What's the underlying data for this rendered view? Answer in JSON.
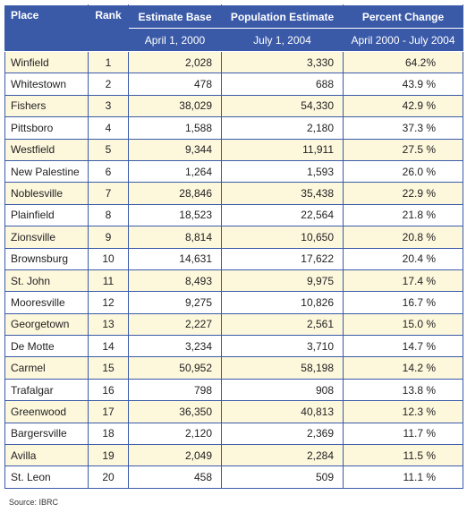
{
  "table": {
    "header": [
      "Place",
      "Rank",
      "Estimate Base",
      "Population Estimate",
      "Percent Change"
    ],
    "subheader": [
      "April 1, 2000",
      "July 1, 2004",
      "April 2000 - July 2004"
    ],
    "rows": [
      [
        "Winfield",
        "1",
        "2,028",
        "3,330",
        "64.2%"
      ],
      [
        "Whitestown",
        "2",
        "478",
        "688",
        "43.9 %"
      ],
      [
        "Fishers",
        "3",
        "38,029",
        "54,330",
        "42.9 %"
      ],
      [
        "Pittsboro",
        "4",
        "1,588",
        "2,180",
        "37.3 %"
      ],
      [
        "Westfield",
        "5",
        "9,344",
        "11,911",
        "27.5 %"
      ],
      [
        "New Palestine",
        "6",
        "1,264",
        "1,593",
        "26.0 %"
      ],
      [
        "Noblesville",
        "7",
        "28,846",
        "35,438",
        "22.9 %"
      ],
      [
        "Plainfield",
        "8",
        "18,523",
        "22,564",
        "21.8 %"
      ],
      [
        "Zionsville",
        "9",
        "8,814",
        "10,650",
        "20.8 %"
      ],
      [
        "Brownsburg",
        "10",
        "14,631",
        "17,622",
        "20.4 %"
      ],
      [
        "St. John",
        "11",
        "8,493",
        "9,975",
        "17.4 %"
      ],
      [
        "Mooresville",
        "12",
        "9,275",
        "10,826",
        "16.7 %"
      ],
      [
        "Georgetown",
        "13",
        "2,227",
        "2,561",
        "15.0 %"
      ],
      [
        "De Motte",
        "14",
        "3,234",
        "3,710",
        "14.7 %"
      ],
      [
        "Carmel",
        "15",
        "50,952",
        "58,198",
        "14.2 %"
      ],
      [
        "Trafalgar",
        "16",
        "798",
        "908",
        "13.8 %"
      ],
      [
        "Greenwood",
        "17",
        "36,350",
        "40,813",
        "12.3 %"
      ],
      [
        "Bargersville",
        "18",
        "2,120",
        "2,369",
        "11.7 %"
      ],
      [
        "Avilla",
        "19",
        "2,049",
        "2,284",
        "11.5 %"
      ],
      [
        "St. Leon",
        "20",
        "458",
        "509",
        "11.1 %"
      ]
    ]
  },
  "source": "Source:  IBRC"
}
